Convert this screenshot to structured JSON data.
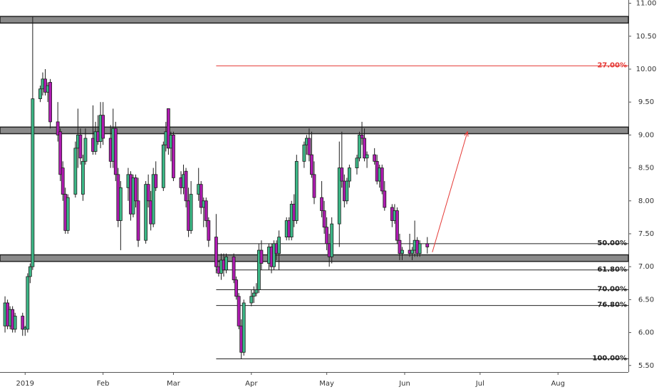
{
  "chart_data": {
    "type": "candlestick",
    "up_color": "#3cb887",
    "down_color": "#b01bb2",
    "outline_color": "#1d1d1d",
    "xlim": [
      -10,
      240
    ],
    "ylim": [
      5.4,
      11.05
    ],
    "yticks": [
      {
        "value": 5.5,
        "label": "5.50"
      },
      {
        "value": 6,
        "label": "6.00"
      },
      {
        "value": 6.5,
        "label": "6.50"
      },
      {
        "value": 7,
        "label": "7.00"
      },
      {
        "value": 7.5,
        "label": "7.50"
      },
      {
        "value": 8,
        "label": "8.00"
      },
      {
        "value": 8.5,
        "label": "8.50"
      },
      {
        "value": 9,
        "label": "9.00"
      },
      {
        "value": 9.5,
        "label": "9.50"
      },
      {
        "value": 10,
        "label": "10.00"
      },
      {
        "value": 10.5,
        "label": "10.50"
      },
      {
        "value": 11,
        "label": "11.00"
      }
    ],
    "xticks": [
      {
        "value": 0,
        "label": "2019"
      },
      {
        "value": 31,
        "label": "Feb"
      },
      {
        "value": 59,
        "label": "Mar"
      },
      {
        "value": 90,
        "label": "Apr"
      },
      {
        "value": 120,
        "label": "May"
      },
      {
        "value": 151,
        "label": "Jun"
      },
      {
        "value": 181,
        "label": "Jul"
      },
      {
        "value": 212,
        "label": "Aug"
      }
    ],
    "zones": [
      {
        "low": 10.7,
        "high": 10.8
      },
      {
        "low": 9.02,
        "high": 9.12
      },
      {
        "low": 7.08,
        "high": 7.18
      }
    ],
    "fib_start": 76,
    "fib_levels": [
      {
        "label": "27.00%",
        "price": 10.05,
        "color": "#e53935"
      },
      {
        "label": "50.00%",
        "price": 7.35,
        "color": "#222222"
      },
      {
        "label": "61.80%",
        "price": 6.95,
        "color": "#222222"
      },
      {
        "label": "70.00%",
        "price": 6.65,
        "color": "#222222"
      },
      {
        "label": "76.80%",
        "price": 6.41,
        "color": "#222222"
      },
      {
        "label": "100.00%",
        "price": 5.6,
        "color": "#222222"
      }
    ],
    "projection": {
      "x": [
        162,
        176
      ],
      "y": [
        7.22,
        9.05
      ],
      "color": "#e53935"
    },
    "candles": [
      {
        "x": -8,
        "open": 6.1,
        "high": 6.55,
        "low": 6.0,
        "close": 6.45
      },
      {
        "x": -7,
        "open": 6.45,
        "high": 6.5,
        "low": 6.05,
        "close": 6.1
      },
      {
        "x": -6,
        "open": 6.1,
        "high": 6.4,
        "low": 6.05,
        "close": 6.35
      },
      {
        "x": -5,
        "open": 6.35,
        "high": 6.4,
        "low": 6.0,
        "close": 6.05
      },
      {
        "x": -4,
        "open": 6.05,
        "high": 6.3,
        "low": 6.0,
        "close": 6.25
      },
      {
        "x": -1,
        "open": 6.25,
        "high": 6.3,
        "low": 5.95,
        "close": 6.05
      },
      {
        "x": 0,
        "open": 6.05,
        "high": 6.1,
        "low": 5.95,
        "close": 6.08
      },
      {
        "x": 1,
        "open": 6.05,
        "high": 6.9,
        "low": 6.0,
        "close": 6.85
      },
      {
        "x": 2,
        "open": 6.85,
        "high": 7.05,
        "low": 6.75,
        "close": 7.0
      },
      {
        "x": 3,
        "open": 7.0,
        "high": 10.8,
        "low": 6.95,
        "close": 9.55
      },
      {
        "x": 6,
        "open": 9.55,
        "high": 9.75,
        "low": 9.5,
        "close": 9.7
      },
      {
        "x": 7,
        "open": 9.7,
        "high": 9.95,
        "low": 9.6,
        "close": 9.85
      },
      {
        "x": 8,
        "open": 9.85,
        "high": 10.0,
        "low": 9.6,
        "close": 9.65
      },
      {
        "x": 9,
        "open": 9.65,
        "high": 9.8,
        "low": 9.5,
        "close": 9.75
      },
      {
        "x": 10,
        "open": 9.8,
        "high": 9.85,
        "low": 9.1,
        "close": 9.2
      },
      {
        "x": 13,
        "open": 9.2,
        "high": 9.5,
        "low": 8.9,
        "close": 9.0
      },
      {
        "x": 14,
        "open": 9.05,
        "high": 9.1,
        "low": 8.3,
        "close": 8.4
      },
      {
        "x": 15,
        "open": 8.5,
        "high": 8.6,
        "low": 8.0,
        "close": 8.1
      },
      {
        "x": 16,
        "open": 8.1,
        "high": 8.2,
        "low": 7.5,
        "close": 7.55
      },
      {
        "x": 17,
        "open": 7.55,
        "high": 8.1,
        "low": 7.5,
        "close": 8.05
      },
      {
        "x": 20,
        "open": 8.1,
        "high": 8.9,
        "low": 8.05,
        "close": 8.8
      },
      {
        "x": 21,
        "open": 8.8,
        "high": 9.4,
        "low": 8.5,
        "close": 9.0
      },
      {
        "x": 22,
        "open": 9.0,
        "high": 9.1,
        "low": 8.55,
        "close": 8.65
      },
      {
        "x": 23,
        "open": 8.1,
        "high": 8.7,
        "low": 8.0,
        "close": 8.6
      },
      {
        "x": 24,
        "open": 8.6,
        "high": 9.1,
        "low": 8.55,
        "close": 8.95
      },
      {
        "x": 27,
        "open": 8.95,
        "high": 9.45,
        "low": 8.7,
        "close": 8.75
      },
      {
        "x": 28,
        "open": 8.75,
        "high": 9.2,
        "low": 8.7,
        "close": 9.05
      },
      {
        "x": 29,
        "open": 9.05,
        "high": 9.3,
        "low": 8.85,
        "close": 8.9
      },
      {
        "x": 30,
        "open": 8.9,
        "high": 9.5,
        "low": 8.8,
        "close": 9.3
      },
      {
        "x": 31,
        "open": 9.3,
        "high": 9.5,
        "low": 8.85,
        "close": 8.95
      },
      {
        "x": 34,
        "open": 8.95,
        "high": 9.15,
        "low": 8.5,
        "close": 8.6
      },
      {
        "x": 35,
        "open": 8.6,
        "high": 9.4,
        "low": 8.5,
        "close": 9.1
      },
      {
        "x": 36,
        "open": 9.1,
        "high": 9.2,
        "low": 8.3,
        "close": 8.4
      },
      {
        "x": 37,
        "open": 8.4,
        "high": 8.5,
        "low": 7.6,
        "close": 7.7
      },
      {
        "x": 38,
        "open": 7.7,
        "high": 8.3,
        "low": 7.25,
        "close": 8.2
      },
      {
        "x": 41,
        "open": 8.2,
        "high": 8.5,
        "low": 8.0,
        "close": 8.4
      },
      {
        "x": 42,
        "open": 8.4,
        "high": 8.45,
        "low": 7.7,
        "close": 7.8
      },
      {
        "x": 43,
        "open": 7.8,
        "high": 8.4,
        "low": 7.75,
        "close": 8.35
      },
      {
        "x": 44,
        "open": 8.35,
        "high": 8.4,
        "low": 7.9,
        "close": 8.0
      },
      {
        "x": 45,
        "open": 8.0,
        "high": 8.35,
        "low": 7.3,
        "close": 7.4
      },
      {
        "x": 48,
        "open": 7.4,
        "high": 8.3,
        "low": 7.35,
        "close": 8.25
      },
      {
        "x": 49,
        "open": 8.25,
        "high": 8.4,
        "low": 7.9,
        "close": 8.0
      },
      {
        "x": 50,
        "open": 8.0,
        "high": 8.15,
        "low": 7.55,
        "close": 7.65
      },
      {
        "x": 51,
        "open": 7.65,
        "high": 8.5,
        "low": 7.6,
        "close": 8.4
      },
      {
        "x": 52,
        "open": 8.4,
        "high": 8.6,
        "low": 8.15,
        "close": 8.2
      },
      {
        "x": 55,
        "open": 8.2,
        "high": 8.9,
        "low": 8.15,
        "close": 8.85
      },
      {
        "x": 56,
        "open": 8.85,
        "high": 9.2,
        "low": 8.75,
        "close": 9.05
      },
      {
        "x": 57,
        "open": 9.4,
        "high": 9.4,
        "low": 8.7,
        "close": 8.8
      },
      {
        "x": 58,
        "open": 8.8,
        "high": 9.05,
        "low": 8.6,
        "close": 9.0
      },
      {
        "x": 59,
        "open": 9.0,
        "high": 9.05,
        "low": 8.3,
        "close": 8.35
      },
      {
        "x": 62,
        "open": 8.35,
        "high": 8.45,
        "low": 8.1,
        "close": 8.2
      },
      {
        "x": 63,
        "open": 8.2,
        "high": 8.55,
        "low": 8.1,
        "close": 8.4
      },
      {
        "x": 64,
        "open": 8.45,
        "high": 8.5,
        "low": 7.9,
        "close": 8.0
      },
      {
        "x": 65,
        "open": 8.0,
        "high": 8.2,
        "low": 7.45,
        "close": 7.55
      },
      {
        "x": 66,
        "open": 7.55,
        "high": 8.3,
        "low": 7.5,
        "close": 8.1
      },
      {
        "x": 69,
        "open": 8.1,
        "high": 8.5,
        "low": 8.0,
        "close": 8.25
      },
      {
        "x": 70,
        "open": 8.25,
        "high": 8.3,
        "low": 7.8,
        "close": 7.9
      },
      {
        "x": 71,
        "open": 7.9,
        "high": 8.05,
        "low": 7.6,
        "close": 8.0
      },
      {
        "x": 72,
        "open": 8.0,
        "high": 8.05,
        "low": 7.6,
        "close": 7.7
      },
      {
        "x": 73,
        "open": 7.7,
        "high": 7.75,
        "low": 7.3,
        "close": 7.4
      },
      {
        "x": 76,
        "open": 7.45,
        "high": 7.8,
        "low": 6.9,
        "close": 7.0
      },
      {
        "x": 77,
        "open": 7.0,
        "high": 7.1,
        "low": 6.85,
        "close": 6.9
      },
      {
        "x": 78,
        "open": 6.9,
        "high": 7.2,
        "low": 6.8,
        "close": 7.1
      },
      {
        "x": 79,
        "open": 7.1,
        "high": 7.2,
        "low": 6.85,
        "close": 6.95
      },
      {
        "x": 80,
        "open": 6.95,
        "high": 7.2,
        "low": 6.9,
        "close": 7.15
      },
      {
        "x": 83,
        "open": 7.15,
        "high": 7.2,
        "low": 6.75,
        "close": 6.8
      },
      {
        "x": 84,
        "open": 6.8,
        "high": 6.85,
        "low": 6.5,
        "close": 6.55
      },
      {
        "x": 85,
        "open": 6.55,
        "high": 6.6,
        "low": 6.05,
        "close": 6.1
      },
      {
        "x": 86,
        "open": 6.1,
        "high": 6.2,
        "low": 5.6,
        "close": 5.7
      },
      {
        "x": 87,
        "open": 5.7,
        "high": 6.5,
        "low": 5.65,
        "close": 6.45
      },
      {
        "x": 90,
        "open": 6.45,
        "high": 6.65,
        "low": 6.4,
        "close": 6.55
      },
      {
        "x": 91,
        "open": 6.55,
        "high": 6.7,
        "low": 6.45,
        "close": 6.6
      },
      {
        "x": 92,
        "open": 6.6,
        "high": 6.75,
        "low": 6.55,
        "close": 6.65
      },
      {
        "x": 93,
        "open": 6.65,
        "high": 7.35,
        "low": 6.6,
        "close": 7.25
      },
      {
        "x": 94,
        "open": 7.25,
        "high": 7.4,
        "low": 6.95,
        "close": 7.05
      },
      {
        "x": 97,
        "open": 7.05,
        "high": 7.35,
        "low": 6.95,
        "close": 7.3
      },
      {
        "x": 98,
        "open": 7.3,
        "high": 7.35,
        "low": 6.9,
        "close": 7.0
      },
      {
        "x": 99,
        "open": 7.0,
        "high": 7.4,
        "low": 6.95,
        "close": 7.35
      },
      {
        "x": 100,
        "open": 7.35,
        "high": 7.4,
        "low": 7.1,
        "close": 7.2
      },
      {
        "x": 101,
        "open": 7.2,
        "high": 7.55,
        "low": 6.95,
        "close": 7.45
      },
      {
        "x": 104,
        "open": 7.45,
        "high": 7.75,
        "low": 7.4,
        "close": 7.7
      },
      {
        "x": 105,
        "open": 7.7,
        "high": 7.75,
        "low": 7.4,
        "close": 7.45
      },
      {
        "x": 106,
        "open": 7.45,
        "high": 8.0,
        "low": 7.4,
        "close": 7.95
      },
      {
        "x": 107,
        "open": 7.95,
        "high": 8.1,
        "low": 7.6,
        "close": 7.7
      },
      {
        "x": 108,
        "open": 7.7,
        "high": 8.7,
        "low": 7.65,
        "close": 8.6
      },
      {
        "x": 111,
        "open": 8.6,
        "high": 8.9,
        "low": 8.5,
        "close": 8.85
      },
      {
        "x": 112,
        "open": 8.85,
        "high": 9.0,
        "low": 8.7,
        "close": 8.95
      },
      {
        "x": 113,
        "open": 8.95,
        "high": 9.1,
        "low": 8.6,
        "close": 8.7
      },
      {
        "x": 114,
        "open": 8.7,
        "high": 9.05,
        "low": 8.35,
        "close": 8.4
      },
      {
        "x": 115,
        "open": 8.4,
        "high": 8.6,
        "low": 7.95,
        "close": 8.05
      },
      {
        "x": 118,
        "open": 8.05,
        "high": 8.3,
        "low": 7.75,
        "close": 7.85
      },
      {
        "x": 119,
        "open": 7.85,
        "high": 8.0,
        "low": 7.5,
        "close": 7.6
      },
      {
        "x": 120,
        "open": 7.6,
        "high": 7.75,
        "low": 7.25,
        "close": 7.35
      },
      {
        "x": 121,
        "open": 7.35,
        "high": 7.5,
        "low": 7.0,
        "close": 7.15
      },
      {
        "x": 122,
        "open": 7.15,
        "high": 7.75,
        "low": 7.05,
        "close": 7.65
      },
      {
        "x": 125,
        "open": 7.65,
        "high": 8.9,
        "low": 7.3,
        "close": 8.5
      },
      {
        "x": 126,
        "open": 8.5,
        "high": 9.05,
        "low": 8.2,
        "close": 8.3
      },
      {
        "x": 127,
        "open": 8.3,
        "high": 8.4,
        "low": 7.9,
        "close": 8.0
      },
      {
        "x": 128,
        "open": 8.0,
        "high": 8.35,
        "low": 7.95,
        "close": 8.3
      },
      {
        "x": 129,
        "open": 8.3,
        "high": 8.55,
        "low": 8.2,
        "close": 8.5
      },
      {
        "x": 132,
        "open": 8.5,
        "high": 8.7,
        "low": 8.4,
        "close": 8.65
      },
      {
        "x": 133,
        "open": 8.65,
        "high": 9.05,
        "low": 8.6,
        "close": 9.0
      },
      {
        "x": 134,
        "open": 9.0,
        "high": 9.2,
        "low": 8.85,
        "close": 8.95
      },
      {
        "x": 135,
        "open": 8.95,
        "high": 9.1,
        "low": 8.6,
        "close": 8.65
      },
      {
        "x": 136,
        "open": 8.65,
        "high": 8.75,
        "low": 8.5,
        "close": 8.7
      },
      {
        "x": 139,
        "open": 8.7,
        "high": 8.8,
        "low": 8.55,
        "close": 8.6
      },
      {
        "x": 140,
        "open": 8.6,
        "high": 8.7,
        "low": 8.25,
        "close": 8.3
      },
      {
        "x": 141,
        "open": 8.3,
        "high": 8.55,
        "low": 8.2,
        "close": 8.5
      },
      {
        "x": 142,
        "open": 8.5,
        "high": 8.55,
        "low": 8.1,
        "close": 8.15
      },
      {
        "x": 143,
        "open": 8.15,
        "high": 8.3,
        "low": 7.85,
        "close": 7.9
      },
      {
        "x": 146,
        "open": 7.9,
        "high": 7.95,
        "low": 7.6,
        "close": 7.7
      },
      {
        "x": 147,
        "open": 7.7,
        "high": 7.95,
        "low": 7.65,
        "close": 7.85
      },
      {
        "x": 148,
        "open": 7.85,
        "high": 7.9,
        "low": 7.35,
        "close": 7.4
      },
      {
        "x": 149,
        "open": 7.4,
        "high": 7.5,
        "low": 7.1,
        "close": 7.2
      },
      {
        "x": 150,
        "open": 7.2,
        "high": 7.3,
        "low": 7.1,
        "close": 7.25
      },
      {
        "x": 153,
        "open": 7.25,
        "high": 7.5,
        "low": 7.15,
        "close": 7.2
      },
      {
        "x": 154,
        "open": 7.2,
        "high": 7.3,
        "low": 7.1,
        "close": 7.25
      },
      {
        "x": 155,
        "open": 7.25,
        "high": 7.7,
        "low": 7.15,
        "close": 7.4
      },
      {
        "x": 156,
        "open": 7.4,
        "high": 7.45,
        "low": 7.15,
        "close": 7.2
      },
      {
        "x": 157,
        "open": 7.2,
        "high": 7.4,
        "low": 7.15,
        "close": 7.35
      },
      {
        "x": 160,
        "open": 7.35,
        "high": 7.45,
        "low": 7.2,
        "close": 7.3
      }
    ]
  }
}
